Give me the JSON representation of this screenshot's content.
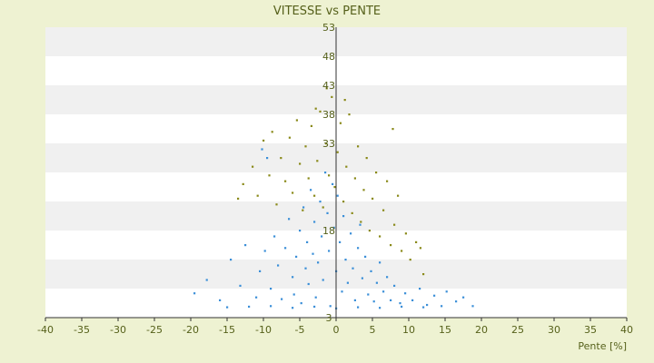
{
  "chart_data": {
    "type": "scatter",
    "title": "VITESSE vs PENTE",
    "xlabel": "Pente [%]",
    "ylabel": "",
    "xlim": [
      -40,
      40
    ],
    "ylim": [
      3,
      53
    ],
    "x_ticks": [
      -40,
      -35,
      -30,
      -25,
      -20,
      -15,
      -10,
      -5,
      0,
      5,
      10,
      15,
      20,
      25,
      30,
      35,
      40
    ],
    "y_ticks": [
      3,
      8,
      13,
      18,
      23,
      28,
      33,
      38,
      43,
      48,
      53
    ],
    "y_tick_labels_visible": [
      "3",
      "18",
      "33",
      "38",
      "43",
      "48",
      "53"
    ],
    "grid": "horizontal-bands",
    "legend": "none",
    "colors": {
      "background": "#eef2d2",
      "band_light": "#ffffff",
      "band_dark": "#f0f0f0",
      "axis": "#333333",
      "text": "#55601a"
    },
    "series": [
      {
        "color": "#3b8fd8",
        "points": [
          [
            -19.5,
            7.2
          ],
          [
            -17.8,
            9.5
          ],
          [
            -16,
            6.0
          ],
          [
            -14.5,
            13.0
          ],
          [
            -13.2,
            8.5
          ],
          [
            -12.5,
            15.5
          ],
          [
            -11.0,
            6.5
          ],
          [
            -10.5,
            11.0
          ],
          [
            -9.8,
            14.5
          ],
          [
            -9.0,
            8.0
          ],
          [
            -8.5,
            17.0
          ],
          [
            -8.0,
            12.0
          ],
          [
            -7.5,
            6.2
          ],
          [
            -7.0,
            15.0
          ],
          [
            -6.5,
            20.0
          ],
          [
            -6.0,
            10.0
          ],
          [
            -5.8,
            7.0
          ],
          [
            -5.5,
            13.5
          ],
          [
            -5.0,
            18.0
          ],
          [
            -4.8,
            5.5
          ],
          [
            -4.5,
            22.0
          ],
          [
            -4.2,
            11.5
          ],
          [
            -4.0,
            16.0
          ],
          [
            -3.8,
            8.8
          ],
          [
            -3.5,
            25.0
          ],
          [
            -3.2,
            14.0
          ],
          [
            -3.0,
            19.5
          ],
          [
            -2.8,
            6.5
          ],
          [
            -2.5,
            12.5
          ],
          [
            -2.2,
            23.0
          ],
          [
            -2.0,
            17.0
          ],
          [
            -1.8,
            9.5
          ],
          [
            -1.5,
            28.0
          ],
          [
            -1.2,
            21.0
          ],
          [
            -1.0,
            14.5
          ],
          [
            -0.8,
            5.0
          ],
          [
            -0.5,
            26.0
          ],
          [
            -0.3,
            18.5
          ],
          [
            0.0,
            11.0
          ],
          [
            0.2,
            24.0
          ],
          [
            0.5,
            16.0
          ],
          [
            0.8,
            7.5
          ],
          [
            1.0,
            20.5
          ],
          [
            1.3,
            13.0
          ],
          [
            1.6,
            9.0
          ],
          [
            2.0,
            17.5
          ],
          [
            2.3,
            11.5
          ],
          [
            2.6,
            6.0
          ],
          [
            3.0,
            15.0
          ],
          [
            3.3,
            19.0
          ],
          [
            3.6,
            9.8
          ],
          [
            4.0,
            13.5
          ],
          [
            4.4,
            7.0
          ],
          [
            4.8,
            11.0
          ],
          [
            5.2,
            5.8
          ],
          [
            5.6,
            9.0
          ],
          [
            6.0,
            12.5
          ],
          [
            6.5,
            7.5
          ],
          [
            7.0,
            10.0
          ],
          [
            7.5,
            6.0
          ],
          [
            8.0,
            8.5
          ],
          [
            8.8,
            5.5
          ],
          [
            9.5,
            7.2
          ],
          [
            10.5,
            6.0
          ],
          [
            11.5,
            8.0
          ],
          [
            12.5,
            5.2
          ],
          [
            13.5,
            6.8
          ],
          [
            14.5,
            5.0
          ],
          [
            15.2,
            7.5
          ],
          [
            16.5,
            5.8
          ],
          [
            17.5,
            6.5
          ],
          [
            18.8,
            5.0
          ],
          [
            -15.0,
            4.8
          ],
          [
            -12.0,
            4.9
          ],
          [
            -9.0,
            5.0
          ],
          [
            -6.0,
            4.7
          ],
          [
            -3.0,
            4.9
          ],
          [
            0.0,
            4.6
          ],
          [
            3.0,
            4.8
          ],
          [
            6.0,
            4.7
          ],
          [
            9.0,
            4.9
          ],
          [
            12.0,
            4.8
          ],
          [
            -10.2,
            32.0
          ],
          [
            -9.5,
            30.5
          ]
        ]
      },
      {
        "color": "#8a8a1a",
        "points": [
          [
            -13.5,
            23.5
          ],
          [
            -12.8,
            26.0
          ],
          [
            -11.5,
            29.0
          ],
          [
            -10.8,
            24.0
          ],
          [
            -10.0,
            33.5
          ],
          [
            -9.2,
            27.5
          ],
          [
            -8.8,
            35.0
          ],
          [
            -8.2,
            22.5
          ],
          [
            -7.6,
            30.5
          ],
          [
            -7.0,
            26.5
          ],
          [
            -6.4,
            34.0
          ],
          [
            -6.0,
            24.5
          ],
          [
            -5.4,
            37.0
          ],
          [
            -5.0,
            29.5
          ],
          [
            -4.6,
            21.5
          ],
          [
            -4.2,
            32.5
          ],
          [
            -3.8,
            27.0
          ],
          [
            -3.4,
            36.0
          ],
          [
            -3.0,
            24.0
          ],
          [
            -2.6,
            30.0
          ],
          [
            -2.2,
            38.5
          ],
          [
            -1.8,
            22.0
          ],
          [
            -1.4,
            33.0
          ],
          [
            -1.0,
            27.5
          ],
          [
            -0.6,
            41.0
          ],
          [
            -0.2,
            25.5
          ],
          [
            0.2,
            31.5
          ],
          [
            0.6,
            36.5
          ],
          [
            1.0,
            23.0
          ],
          [
            1.4,
            29.0
          ],
          [
            1.8,
            38.0
          ],
          [
            2.2,
            21.0
          ],
          [
            2.6,
            27.0
          ],
          [
            3.0,
            32.5
          ],
          [
            3.4,
            19.5
          ],
          [
            3.8,
            25.0
          ],
          [
            4.2,
            30.5
          ],
          [
            4.6,
            18.0
          ],
          [
            5.0,
            23.5
          ],
          [
            5.5,
            28.0
          ],
          [
            6.0,
            17.0
          ],
          [
            6.5,
            21.5
          ],
          [
            7.0,
            26.5
          ],
          [
            7.5,
            15.5
          ],
          [
            8.0,
            19.0
          ],
          [
            8.5,
            24.0
          ],
          [
            9.0,
            14.5
          ],
          [
            9.6,
            17.5
          ],
          [
            10.2,
            13.0
          ],
          [
            11.0,
            16.0
          ],
          [
            11.6,
            15.0
          ],
          [
            12.0,
            10.5
          ],
          [
            7.8,
            35.5
          ],
          [
            -1.3,
            42.5
          ],
          [
            1.2,
            40.5
          ],
          [
            -2.8,
            39.0
          ]
        ]
      }
    ]
  }
}
